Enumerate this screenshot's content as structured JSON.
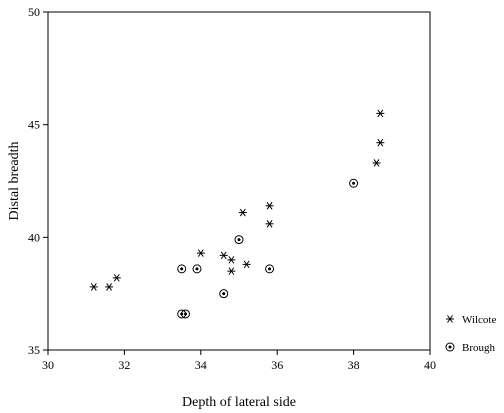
{
  "chart_data": {
    "type": "scatter",
    "title": "",
    "xlabel": "Depth of lateral side",
    "ylabel": "Distal breadth",
    "xlim": [
      30,
      40
    ],
    "ylim": [
      35,
      50
    ],
    "xticks": [
      30,
      32,
      34,
      36,
      38,
      40
    ],
    "yticks": [
      35,
      40,
      45,
      50
    ],
    "grid": false,
    "legend": "right",
    "colors": {
      "marker": "#000000",
      "axis": "#000000",
      "background": "#ffffff"
    },
    "series": [
      {
        "name": "Wilcote",
        "marker": "asterisk",
        "points": [
          {
            "x": 31.2,
            "y": 37.8
          },
          {
            "x": 31.6,
            "y": 37.8
          },
          {
            "x": 31.8,
            "y": 38.2
          },
          {
            "x": 34.0,
            "y": 39.3
          },
          {
            "x": 34.6,
            "y": 39.2
          },
          {
            "x": 34.8,
            "y": 39.0
          },
          {
            "x": 34.8,
            "y": 38.5
          },
          {
            "x": 35.1,
            "y": 41.1
          },
          {
            "x": 35.2,
            "y": 38.8
          },
          {
            "x": 35.8,
            "y": 41.4
          },
          {
            "x": 35.8,
            "y": 40.6
          },
          {
            "x": 38.6,
            "y": 43.3
          },
          {
            "x": 38.7,
            "y": 45.5
          },
          {
            "x": 38.7,
            "y": 44.2
          }
        ]
      },
      {
        "name": "Brough",
        "marker": "circle-dot",
        "points": [
          {
            "x": 33.5,
            "y": 38.6
          },
          {
            "x": 33.9,
            "y": 38.6
          },
          {
            "x": 33.5,
            "y": 36.6
          },
          {
            "x": 33.6,
            "y": 36.6
          },
          {
            "x": 34.6,
            "y": 37.5
          },
          {
            "x": 35.0,
            "y": 39.9
          },
          {
            "x": 35.8,
            "y": 38.6
          },
          {
            "x": 38.0,
            "y": 42.4
          }
        ]
      }
    ]
  }
}
